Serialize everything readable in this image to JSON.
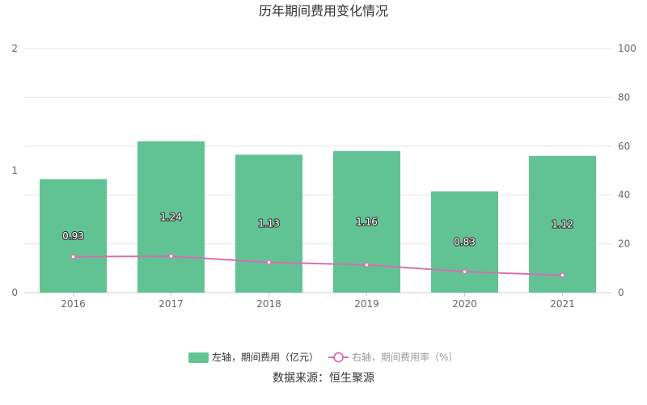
{
  "chart_data": {
    "type": "bar",
    "title": "历年期间费用变化情况",
    "categories": [
      "2016",
      "2017",
      "2018",
      "2019",
      "2020",
      "2021"
    ],
    "series": [
      {
        "name": "左轴，期间费用（亿元）",
        "type": "bar",
        "axis": "left",
        "color": "#61c394",
        "values": [
          0.93,
          1.24,
          1.13,
          1.16,
          0.83,
          1.12
        ]
      },
      {
        "name": "右轴，期间费用率（%）",
        "type": "line",
        "axis": "right",
        "color": "#d56fb1",
        "values": [
          14.7,
          14.9,
          12.4,
          11.4,
          8.6,
          7.1
        ]
      }
    ],
    "y_left": {
      "min": 0,
      "max": 2,
      "ticks": [
        "0",
        "1",
        "2"
      ]
    },
    "y_right": {
      "min": 0,
      "max": 100,
      "ticks": [
        "0",
        "20",
        "40",
        "60",
        "80",
        "100"
      ]
    },
    "grid": true,
    "legend_position": "bottom",
    "source": "数据来源：恒生聚源"
  }
}
